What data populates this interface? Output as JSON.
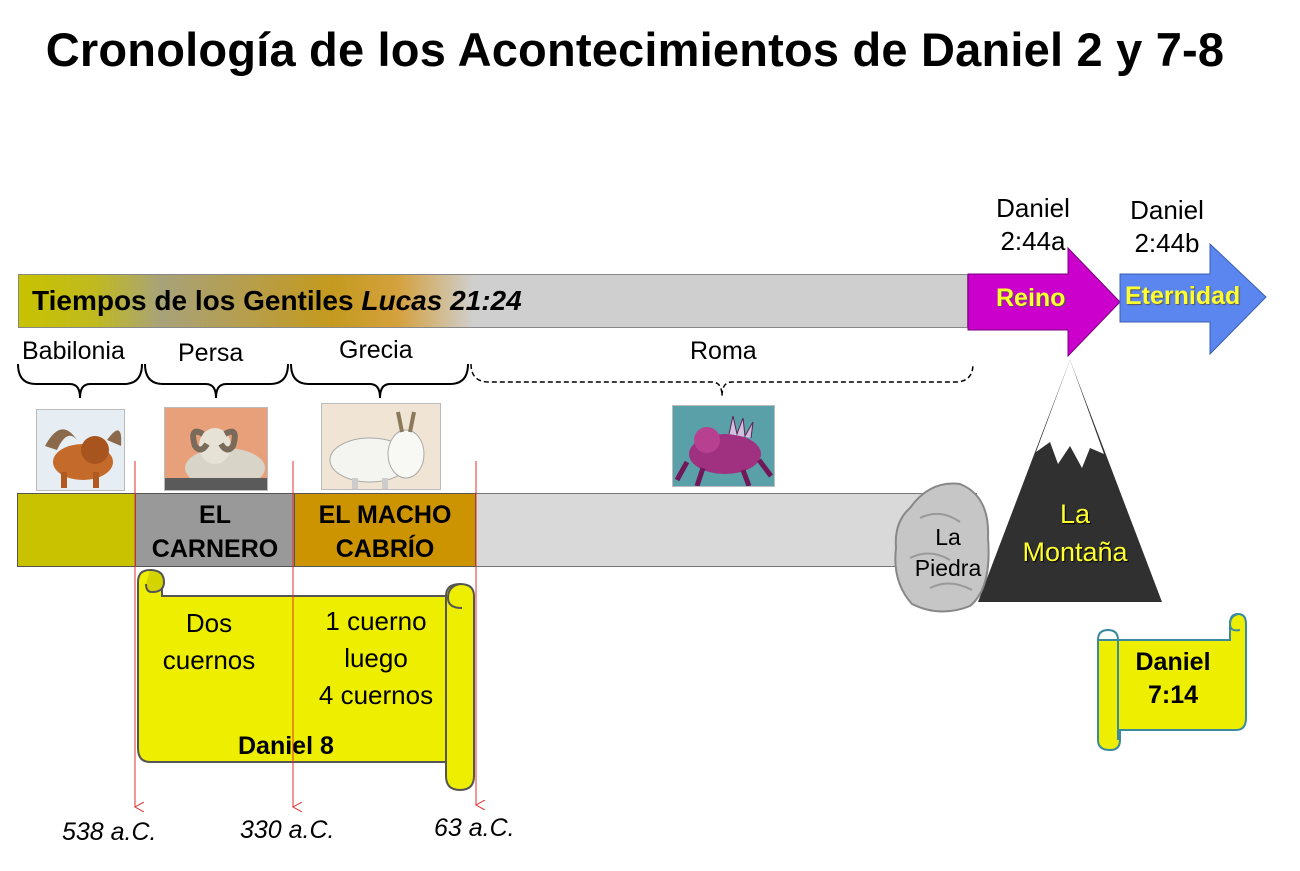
{
  "title": "Cronología de los Acontecimientos de Daniel 2 y 7-8",
  "gentiles": {
    "label": "Tiempos de los Gentiles",
    "ref": "Lucas 21:24"
  },
  "kingdom": {
    "ref_line1": "Daniel",
    "ref_line2": "2:44a",
    "label": "Reino",
    "color": "#cc00cc"
  },
  "eternity": {
    "ref_line1": "Daniel",
    "ref_line2": "2:44b",
    "label": "Eternidad",
    "color": "#5b86f0"
  },
  "empires": [
    "Babilonia",
    "Persa",
    "Grecia",
    "Roma"
  ],
  "segments": {
    "ram_line1": "EL",
    "ram_line2": "CARNERO",
    "goat_line1": "EL MACHO",
    "goat_line2": "CABRÍO"
  },
  "stone": {
    "line1": "La",
    "line2": "Piedra"
  },
  "mountain": {
    "line1": "La",
    "line2": "Montaña"
  },
  "scroll_daniel8": {
    "col1_line1": "Dos",
    "col1_line2": "cuernos",
    "col2_line1": "1 cuerno",
    "col2_line2": "luego",
    "col2_line3": "4 cuernos",
    "ref": "Daniel 8"
  },
  "scroll_daniel7": {
    "line1": "Daniel",
    "line2": "7:14"
  },
  "dates": [
    "538 a.C.",
    "330 a.C.",
    "63 a.C."
  ],
  "colors": {
    "babylon": "#c8c200",
    "ram": "#999999",
    "goat": "#cc9400",
    "scroll": "#eeee00",
    "timeline": "#d9d9d9",
    "date_marker": "#e03030"
  }
}
